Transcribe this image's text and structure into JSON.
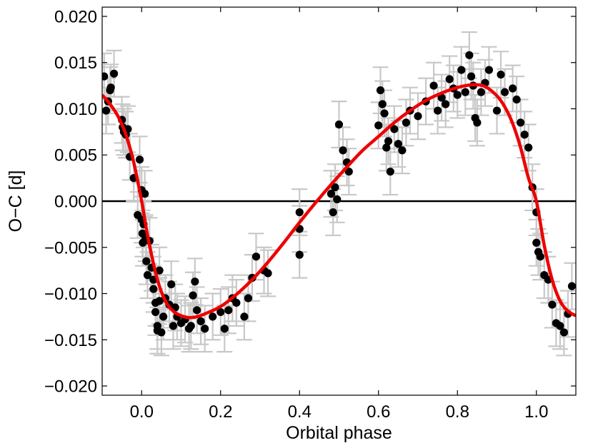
{
  "chart_data": {
    "type": "scatter",
    "title": "",
    "xlabel": "Orbital phase",
    "ylabel": "O−C [d]",
    "xlim": [
      -0.1,
      1.1
    ],
    "ylim": [
      -0.021,
      0.021
    ],
    "x_ticks": [
      0.0,
      0.2,
      0.4,
      0.6,
      0.8,
      1.0
    ],
    "x_tick_labels": [
      "0.0",
      "0.2",
      "0.4",
      "0.6",
      "0.8",
      "1.0"
    ],
    "y_ticks": [
      0.02,
      0.015,
      0.01,
      0.005,
      0.0,
      -0.005,
      -0.01,
      -0.015,
      -0.02
    ],
    "y_tick_labels": [
      "0.020",
      "0.015",
      "0.010",
      "0.005",
      "0.000",
      "−0.005",
      "−0.010",
      "−0.015",
      "−0.020"
    ],
    "grid": false,
    "reference_line_y": 0.0,
    "colors": {
      "points": "#000000",
      "errorbars": "#c8c8c8",
      "model": "#ee0000",
      "reference": "#000000"
    },
    "series": [
      {
        "kind": "points_with_errorbars",
        "yerr": 0.0025,
        "x": [
          -0.095,
          -0.09,
          -0.085,
          -0.08,
          -0.078,
          -0.07,
          -0.05,
          -0.048,
          -0.045,
          -0.04,
          -0.035,
          -0.03,
          -0.02,
          -0.01,
          -0.005,
          0.0,
          0.0,
          0.002,
          0.003,
          0.005,
          0.008,
          0.01,
          0.012,
          0.015,
          0.02,
          0.025,
          0.03,
          0.03,
          0.035,
          0.035,
          0.04,
          0.04,
          0.045,
          0.045,
          0.05,
          0.055,
          0.06,
          0.07,
          0.075,
          0.08,
          0.085,
          0.09,
          0.1,
          0.11,
          0.12,
          0.125,
          0.13,
          0.135,
          0.14,
          0.15,
          0.16,
          0.18,
          0.2,
          0.21,
          0.22,
          0.23,
          0.24,
          0.26,
          0.27,
          0.28,
          0.29,
          0.31,
          0.32,
          0.4,
          0.4,
          0.4,
          0.48,
          0.485,
          0.49,
          0.495,
          0.5,
          0.51,
          0.52,
          0.525,
          0.6,
          0.605,
          0.61,
          0.615,
          0.62,
          0.625,
          0.63,
          0.64,
          0.65,
          0.66,
          0.67,
          0.68,
          0.7,
          0.72,
          0.74,
          0.75,
          0.76,
          0.77,
          0.78,
          0.79,
          0.8,
          0.81,
          0.82,
          0.83,
          0.835,
          0.84,
          0.845,
          0.85,
          0.86,
          0.87,
          0.88,
          0.9,
          0.91,
          0.92,
          0.94,
          0.95,
          0.96,
          0.97,
          0.98,
          0.99,
          1.0,
          1.0,
          1.005,
          1.01,
          1.02,
          1.03,
          1.04,
          1.05,
          1.06,
          1.07,
          1.08,
          1.09
        ],
        "y": [
          0.0135,
          0.0098,
          0.0108,
          0.012,
          0.0123,
          0.0138,
          0.0088,
          0.008,
          0.0075,
          0.0072,
          0.0078,
          0.0048,
          0.0025,
          -0.0015,
          0.0045,
          0.0012,
          -0.002,
          -0.0035,
          -0.0045,
          -0.0025,
          0.0008,
          -0.004,
          -0.0065,
          -0.008,
          -0.0043,
          -0.0072,
          -0.0085,
          -0.0095,
          -0.011,
          -0.012,
          -0.0135,
          -0.014,
          -0.0075,
          -0.0108,
          -0.0142,
          -0.0125,
          -0.0105,
          -0.0112,
          -0.009,
          -0.0135,
          -0.0115,
          -0.0125,
          -0.0132,
          -0.0128,
          -0.0138,
          -0.0135,
          -0.0102,
          -0.0087,
          -0.0118,
          -0.013,
          -0.0138,
          -0.0125,
          -0.012,
          -0.0138,
          -0.0118,
          -0.0105,
          -0.011,
          -0.0125,
          -0.0105,
          -0.0083,
          -0.006,
          -0.0075,
          -0.0078,
          -0.0012,
          -0.003,
          -0.0058,
          0.0008,
          -0.0012,
          0.0015,
          0.0002,
          0.0083,
          0.0055,
          0.0042,
          0.0032,
          0.0082,
          0.012,
          0.0105,
          0.0095,
          0.0058,
          0.0065,
          0.0032,
          0.0078,
          0.0062,
          0.0055,
          0.0085,
          0.0098,
          0.0092,
          0.0108,
          0.0125,
          0.0098,
          0.0112,
          0.0105,
          0.0132,
          0.0122,
          0.0115,
          0.0142,
          0.0118,
          0.0158,
          0.0135,
          0.0125,
          0.009,
          0.0085,
          0.0118,
          0.0128,
          0.0142,
          0.0098,
          0.0137,
          0.0118,
          0.0122,
          0.011,
          0.0085,
          0.0072,
          0.0058,
          0.0015,
          -0.0012,
          -0.0045,
          -0.0055,
          -0.006,
          -0.008,
          -0.0085,
          -0.0112,
          -0.0132,
          -0.0135,
          -0.0142,
          -0.0122,
          -0.0092
        ]
      },
      {
        "kind": "model_curve",
        "x": [
          -0.1,
          -0.08,
          -0.06,
          -0.04,
          -0.02,
          0.0,
          0.01,
          0.02,
          0.04,
          0.06,
          0.08,
          0.1,
          0.12,
          0.14,
          0.16,
          0.2,
          0.24,
          0.28,
          0.32,
          0.36,
          0.4,
          0.44,
          0.48,
          0.52,
          0.56,
          0.6,
          0.64,
          0.68,
          0.72,
          0.76,
          0.8,
          0.84,
          0.87,
          0.9,
          0.92,
          0.94,
          0.96,
          0.98,
          1.0,
          1.02,
          1.04,
          1.06,
          1.08,
          1.1
        ],
        "y": [
          0.0115,
          0.0105,
          0.0092,
          0.0072,
          0.0042,
          0.0,
          -0.0025,
          -0.0048,
          -0.0085,
          -0.0108,
          -0.0119,
          -0.0124,
          -0.0126,
          -0.0125,
          -0.0122,
          -0.0114,
          -0.0101,
          -0.0085,
          -0.0066,
          -0.0045,
          -0.0023,
          -0.0002,
          0.0018,
          0.0037,
          0.0055,
          0.007,
          0.0085,
          0.0098,
          0.0109,
          0.0117,
          0.0123,
          0.0126,
          0.0124,
          0.0114,
          0.0102,
          0.0084,
          0.0058,
          0.0025,
          0.0,
          -0.0048,
          -0.0085,
          -0.0108,
          -0.0119,
          -0.0124
        ]
      }
    ]
  }
}
